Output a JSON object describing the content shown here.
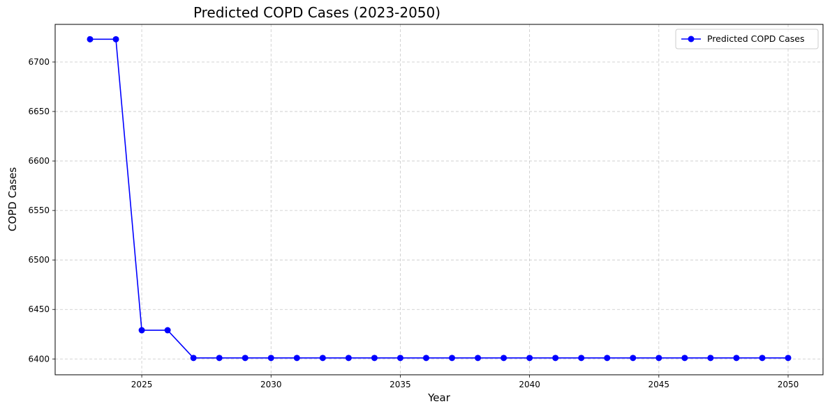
{
  "chart_data": {
    "type": "line",
    "title": "Predicted COPD Cases (2023-2050)",
    "xlabel": "Year",
    "ylabel": "COPD Cases",
    "xlim": [
      2021.65,
      2051.35
    ],
    "ylim": [
      6384,
      6738
    ],
    "x_ticks": [
      2025,
      2030,
      2035,
      2040,
      2045,
      2050
    ],
    "y_ticks": [
      6400,
      6450,
      6500,
      6550,
      6600,
      6650,
      6700
    ],
    "grid": true,
    "legend_position": "top-right",
    "series": [
      {
        "name": "Predicted COPD Cases",
        "color": "#0000ff",
        "marker": "circle",
        "x": [
          2023,
          2024,
          2025,
          2026,
          2027,
          2028,
          2029,
          2030,
          2031,
          2032,
          2033,
          2034,
          2035,
          2036,
          2037,
          2038,
          2039,
          2040,
          2041,
          2042,
          2043,
          2044,
          2045,
          2046,
          2047,
          2048,
          2049,
          2050
        ],
        "y": [
          6723,
          6723,
          6429,
          6429,
          6401,
          6401,
          6401,
          6401,
          6401,
          6401,
          6401,
          6401,
          6401,
          6401,
          6401,
          6401,
          6401,
          6401,
          6401,
          6401,
          6401,
          6401,
          6401,
          6401,
          6401,
          6401,
          6401,
          6401
        ]
      }
    ]
  }
}
